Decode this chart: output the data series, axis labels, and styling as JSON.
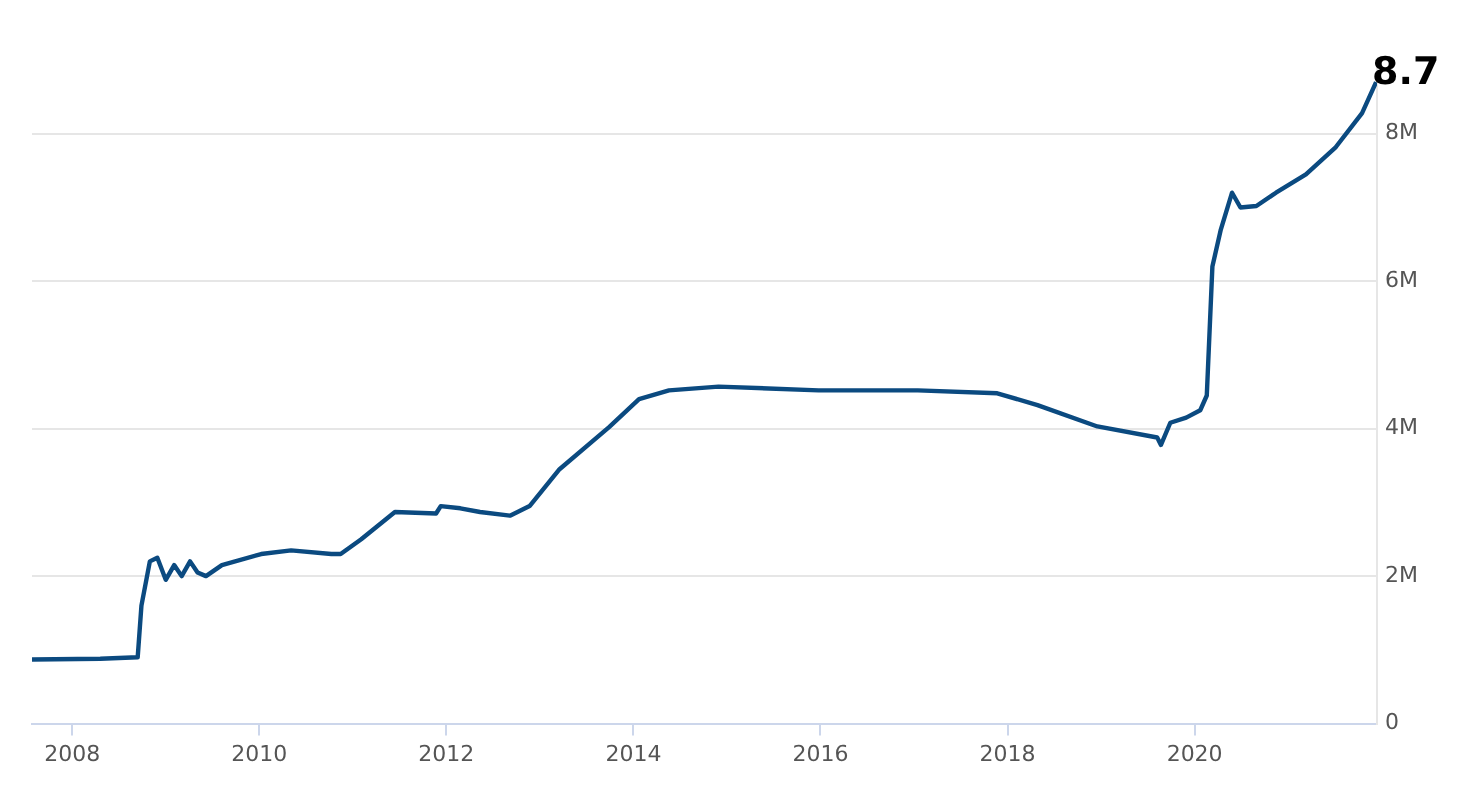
{
  "chart_data": {
    "type": "line",
    "grid": "y",
    "marker": "none",
    "line_style": "solid",
    "xlim": [
      2007.57,
      2021.95
    ],
    "xticks": [
      2008,
      2010,
      2012,
      2014,
      2016,
      2018,
      2020
    ],
    "ylim": [
      0,
      9
    ],
    "yticks": [
      0,
      {
        "value": 2,
        "label": "2M"
      },
      {
        "value": 4,
        "label": "4M"
      },
      {
        "value": 6,
        "label": "6M"
      },
      {
        "value": 8,
        "label": "8M"
      }
    ],
    "annotations": [
      {
        "text": "8.7",
        "x": 2021.94,
        "y": 8.7
      }
    ],
    "series": [
      {
        "color": "#0b4a80",
        "x": [
          2007.57,
          2008.3,
          2008.7,
          2008.74,
          2008.83,
          2008.91,
          2009.0,
          2009.09,
          2009.17,
          2009.26,
          2009.34,
          2009.43,
          2009.6,
          2010.02,
          2010.34,
          2010.77,
          2010.87,
          2011.09,
          2011.45,
          2011.89,
          2011.94,
          2012.15,
          2012.36,
          2012.68,
          2012.89,
          2013.21,
          2013.74,
          2014.06,
          2014.38,
          2014.91,
          2015.98,
          2017.04,
          2017.89,
          2018.32,
          2018.96,
          2019.6,
          2019.64,
          2019.74,
          2019.91,
          2020.06,
          2020.13,
          2020.19,
          2020.28,
          2020.4,
          2020.49,
          2020.66,
          2020.87,
          2021.19,
          2021.51,
          2021.79,
          2021.94
        ],
        "values": [
          0.87,
          0.88,
          0.9,
          1.6,
          2.2,
          2.25,
          1.95,
          2.15,
          2.0,
          2.2,
          2.05,
          2.0,
          2.15,
          2.3,
          2.35,
          2.3,
          2.3,
          2.5,
          2.87,
          2.85,
          2.95,
          2.92,
          2.87,
          2.82,
          2.95,
          3.45,
          4.02,
          4.4,
          4.52,
          4.57,
          4.52,
          4.52,
          4.48,
          4.32,
          4.03,
          3.88,
          3.78,
          4.08,
          4.15,
          4.25,
          4.45,
          6.2,
          6.7,
          7.2,
          7.0,
          7.02,
          7.2,
          7.45,
          7.82,
          8.28,
          8.7
        ]
      }
    ]
  }
}
